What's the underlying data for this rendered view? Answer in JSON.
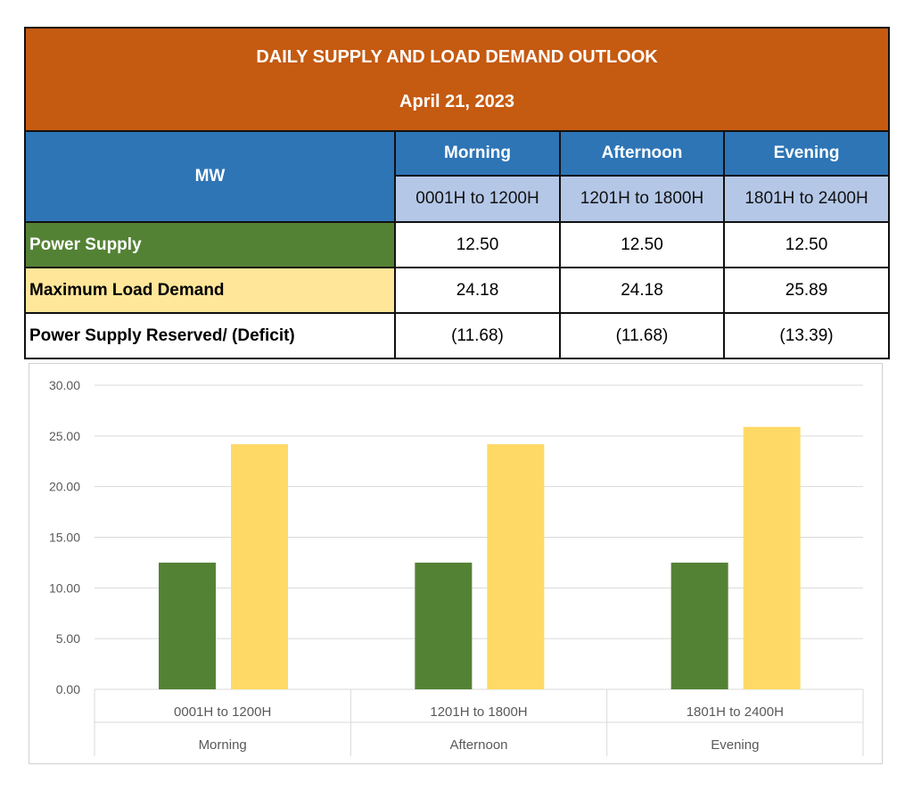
{
  "table": {
    "title": "DAILY SUPPLY AND LOAD DEMAND OUTLOOK",
    "date": "April 21, 2023",
    "unit_label": "MW",
    "periods": [
      "Morning",
      "Afternoon",
      "Evening"
    ],
    "ranges": [
      "0001H to 1200H",
      "1201H to 1800H",
      "1801H to 2400H"
    ],
    "rows": [
      {
        "label": "Power Supply",
        "values": [
          "12.50",
          "12.50",
          "12.50"
        ]
      },
      {
        "label": "Maximum Load Demand",
        "values": [
          "24.18",
          "24.18",
          "25.89"
        ]
      },
      {
        "label": "Power Supply Reserved/ (Deficit)",
        "values": [
          "(11.68)",
          "(11.68)",
          "(13.39)"
        ]
      }
    ]
  },
  "chart_data": {
    "type": "bar",
    "categories": [
      "0001H to 1200H",
      "1201H to 1800H",
      "1801H to 2400H"
    ],
    "category_groups": [
      "Morning",
      "Afternoon",
      "Evening"
    ],
    "series": [
      {
        "values": [
          12.5,
          12.5,
          12.5
        ],
        "color": "#548235"
      },
      {
        "values": [
          24.18,
          24.18,
          25.89
        ],
        "color": "#FFD966"
      }
    ],
    "ylim": [
      0,
      30
    ],
    "yticks": [
      "0.00",
      "5.00",
      "10.00",
      "15.00",
      "20.00",
      "25.00",
      "30.00"
    ],
    "grid": true,
    "legend": "none"
  }
}
